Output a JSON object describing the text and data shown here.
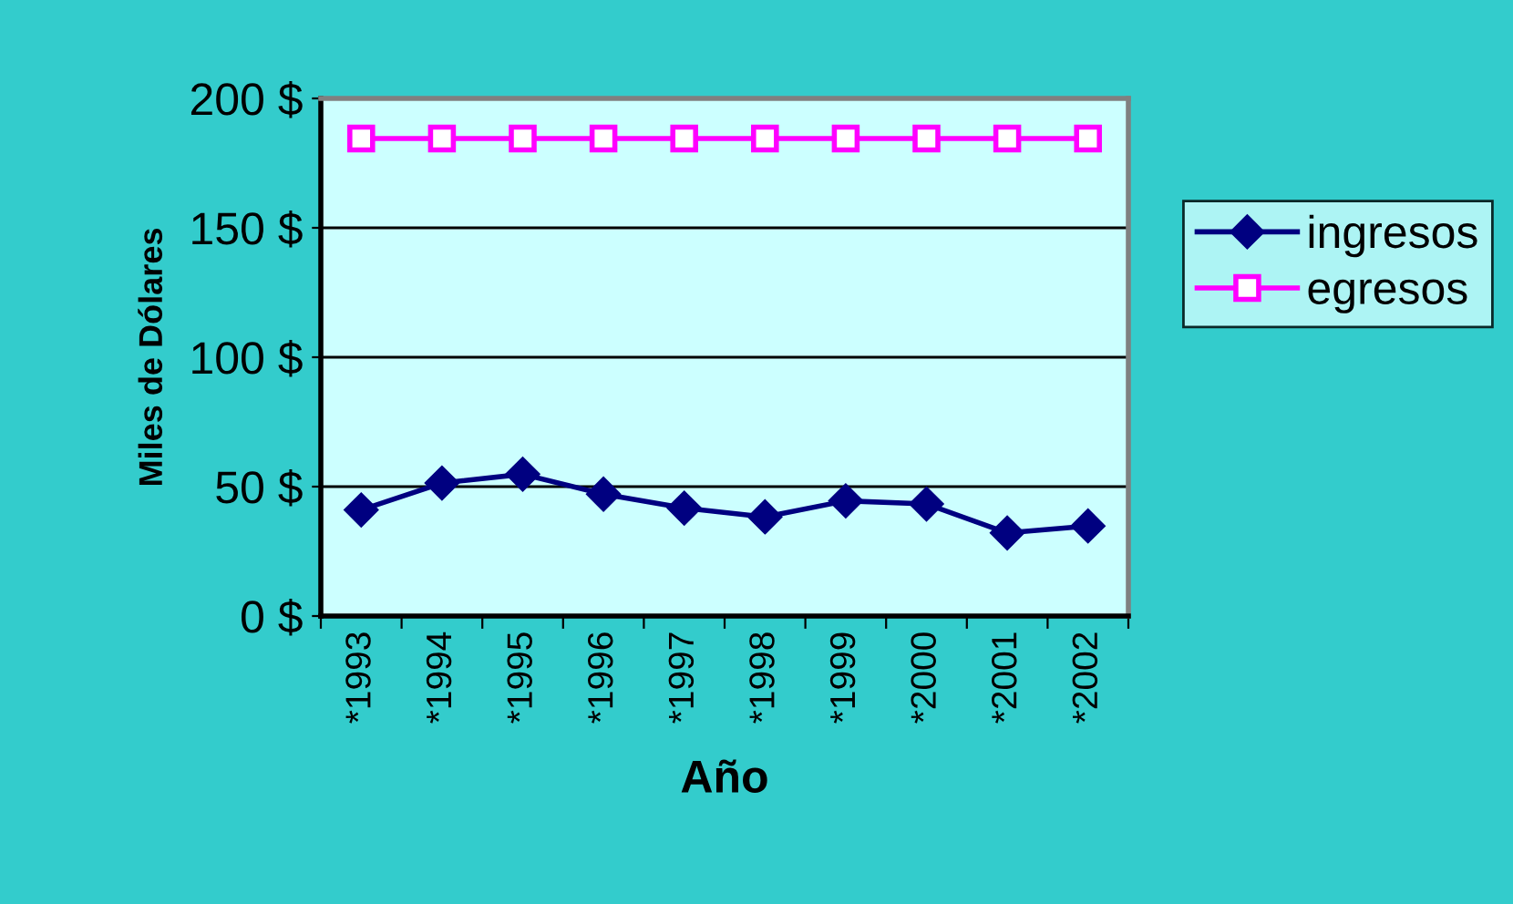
{
  "chart_data": {
    "type": "line",
    "xlabel": "Año",
    "ylabel": "Miles de Dólares",
    "categories": [
      "*1993",
      "*1994",
      "*1995",
      "*1996",
      "*1997",
      "*1998",
      "*1999",
      "*2000",
      "*2001",
      "*2002"
    ],
    "series": [
      {
        "name": "ingresos",
        "color": "#000080",
        "marker": "diamond",
        "values": [
          41,
          51.4,
          54.8,
          47.1,
          41.7,
          38.3,
          44.5,
          43.3,
          32.1,
          34.8
        ]
      },
      {
        "name": "egresos",
        "color": "#ff00ff",
        "marker": "square",
        "values": [
          184.5,
          184.5,
          184.5,
          184.5,
          184.5,
          184.5,
          184.5,
          184.5,
          184.5,
          184.5
        ]
      }
    ],
    "ylim": [
      0,
      200
    ],
    "yticks": [
      {
        "value": 0,
        "label": "0 $"
      },
      {
        "value": 50,
        "label": "50 $"
      },
      {
        "value": 100,
        "label": "100 $"
      },
      {
        "value": 150,
        "label": "150 $"
      },
      {
        "value": 200,
        "label": "200 $"
      }
    ],
    "grid": "y",
    "legend": "right",
    "line_style": "solid"
  }
}
